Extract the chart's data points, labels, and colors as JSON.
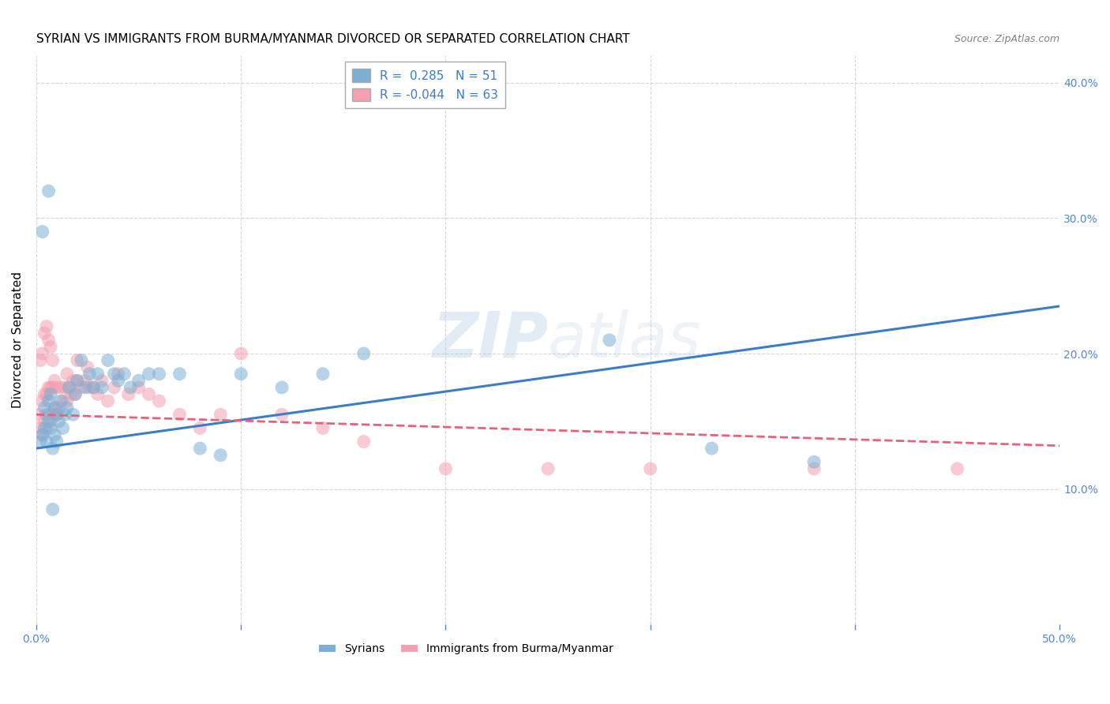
{
  "title": "SYRIAN VS IMMIGRANTS FROM BURMA/MYANMAR DIVORCED OR SEPARATED CORRELATION CHART",
  "source": "Source: ZipAtlas.com",
  "ylabel": "Divorced or Separated",
  "xlim": [
    0.0,
    0.5
  ],
  "ylim": [
    0.0,
    0.42
  ],
  "xticks": [
    0.0,
    0.1,
    0.2,
    0.3,
    0.4,
    0.5
  ],
  "yticks": [
    0.0,
    0.1,
    0.2,
    0.3,
    0.4
  ],
  "xticklabels": [
    "0.0%",
    "",
    "",
    "",
    "",
    "50.0%"
  ],
  "yticklabels_right": [
    "",
    "10.0%",
    "20.0%",
    "30.0%",
    "40.0%"
  ],
  "blue_color": "#7BAFD4",
  "pink_color": "#F4A0B0",
  "blue_line_color": "#3A7DC9",
  "pink_line_color": "#E8607A",
  "watermark_color": "#C8DCF0",
  "legend_label1": "Syrians",
  "legend_label2": "Immigrants from Burma/Myanmar",
  "legend_line1": "R =  0.285   N = 51",
  "legend_line2": "R = -0.044   N = 63",
  "blue_scatter_x": [
    0.002,
    0.003,
    0.004,
    0.004,
    0.005,
    0.005,
    0.006,
    0.006,
    0.007,
    0.007,
    0.008,
    0.008,
    0.009,
    0.009,
    0.01,
    0.01,
    0.011,
    0.012,
    0.013,
    0.014,
    0.015,
    0.016,
    0.018,
    0.019,
    0.02,
    0.022,
    0.024,
    0.026,
    0.028,
    0.03,
    0.032,
    0.035,
    0.038,
    0.04,
    0.043,
    0.046,
    0.05,
    0.055,
    0.06,
    0.07,
    0.08,
    0.09,
    0.1,
    0.12,
    0.14,
    0.16,
    0.28,
    0.33,
    0.38,
    0.003,
    0.006
  ],
  "blue_scatter_y": [
    0.135,
    0.14,
    0.145,
    0.16,
    0.135,
    0.155,
    0.15,
    0.165,
    0.145,
    0.17,
    0.085,
    0.13,
    0.14,
    0.16,
    0.135,
    0.155,
    0.15,
    0.165,
    0.145,
    0.155,
    0.16,
    0.175,
    0.155,
    0.17,
    0.18,
    0.195,
    0.175,
    0.185,
    0.175,
    0.185,
    0.175,
    0.195,
    0.185,
    0.18,
    0.185,
    0.175,
    0.18,
    0.185,
    0.185,
    0.185,
    0.13,
    0.125,
    0.185,
    0.175,
    0.185,
    0.2,
    0.21,
    0.13,
    0.12,
    0.29,
    0.32
  ],
  "pink_scatter_x": [
    0.001,
    0.002,
    0.003,
    0.003,
    0.004,
    0.004,
    0.005,
    0.005,
    0.006,
    0.006,
    0.007,
    0.007,
    0.008,
    0.008,
    0.009,
    0.009,
    0.01,
    0.01,
    0.011,
    0.012,
    0.013,
    0.014,
    0.015,
    0.016,
    0.017,
    0.018,
    0.019,
    0.02,
    0.022,
    0.024,
    0.026,
    0.028,
    0.03,
    0.032,
    0.035,
    0.038,
    0.04,
    0.045,
    0.05,
    0.055,
    0.06,
    0.07,
    0.08,
    0.09,
    0.1,
    0.12,
    0.14,
    0.16,
    0.2,
    0.25,
    0.3,
    0.38,
    0.45,
    0.002,
    0.003,
    0.004,
    0.005,
    0.006,
    0.007,
    0.008,
    0.015,
    0.02,
    0.025
  ],
  "pink_scatter_y": [
    0.155,
    0.145,
    0.14,
    0.165,
    0.15,
    0.17,
    0.145,
    0.17,
    0.155,
    0.175,
    0.15,
    0.175,
    0.155,
    0.175,
    0.16,
    0.18,
    0.155,
    0.175,
    0.16,
    0.175,
    0.165,
    0.175,
    0.165,
    0.175,
    0.17,
    0.18,
    0.17,
    0.18,
    0.175,
    0.18,
    0.175,
    0.175,
    0.17,
    0.18,
    0.165,
    0.175,
    0.185,
    0.17,
    0.175,
    0.17,
    0.165,
    0.155,
    0.145,
    0.155,
    0.2,
    0.155,
    0.145,
    0.135,
    0.115,
    0.115,
    0.115,
    0.115,
    0.115,
    0.195,
    0.2,
    0.215,
    0.22,
    0.21,
    0.205,
    0.195,
    0.185,
    0.195,
    0.19
  ],
  "blue_line_x": [
    0.0,
    0.5
  ],
  "blue_line_y": [
    0.13,
    0.235
  ],
  "pink_line_x": [
    0.0,
    0.5
  ],
  "pink_line_y": [
    0.155,
    0.132
  ],
  "background_color": "#FFFFFF",
  "grid_color": "#CCCCCC",
  "axis_color": "#5588CC",
  "title_fontsize": 11,
  "label_fontsize": 11
}
